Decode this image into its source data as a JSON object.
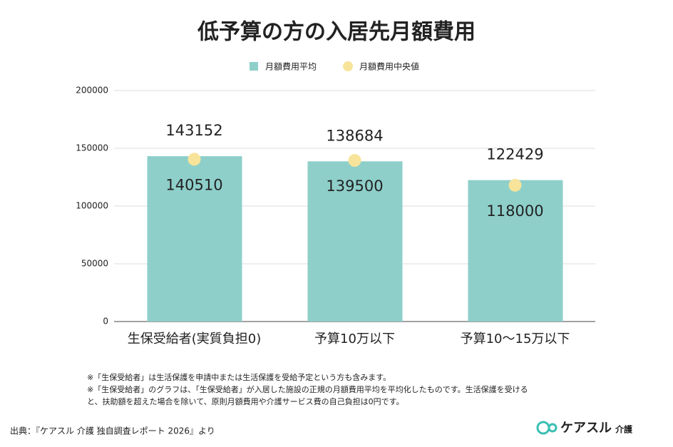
{
  "chart_data": {
    "type": "bar",
    "title": "低予算の方の入居先月額費用",
    "categories": [
      "生保受給者(実質負担0)",
      "予算10万以下",
      "予算10〜15万以下"
    ],
    "series": [
      {
        "name": "月額費用平均",
        "type": "bar",
        "color": "#8ecfca",
        "label_color": "#8ecfca",
        "values": [
          143152,
          138684,
          122429
        ]
      },
      {
        "name": "月額費用中央値",
        "type": "scatter",
        "color": "#f7e49a",
        "label_color": "#f7e49a",
        "values": [
          140510,
          139500,
          118000
        ]
      }
    ],
    "ylim": [
      0,
      200000
    ],
    "yticks": [
      0,
      50000,
      100000,
      150000,
      200000
    ],
    "grid": true,
    "legend": "top"
  },
  "notes": [
    "※「生保受給者」は生活保護を申請中または生活保護を受給予定という方も含みます。",
    "※「生保受給者」のグラフは、「生保受給者」が入居した施設の正規の月額費用平均を平均化したものです。生活保護を受ける",
    "と、扶助額を超えた場合を除いて、原則月額費用や介護サービス費の自己負担は0円です。"
  ],
  "source": "出典：『ケアスル 介護 独自調査レポート 2026』より",
  "logo": {
    "brand": "ケアスル",
    "sub": "介護"
  }
}
